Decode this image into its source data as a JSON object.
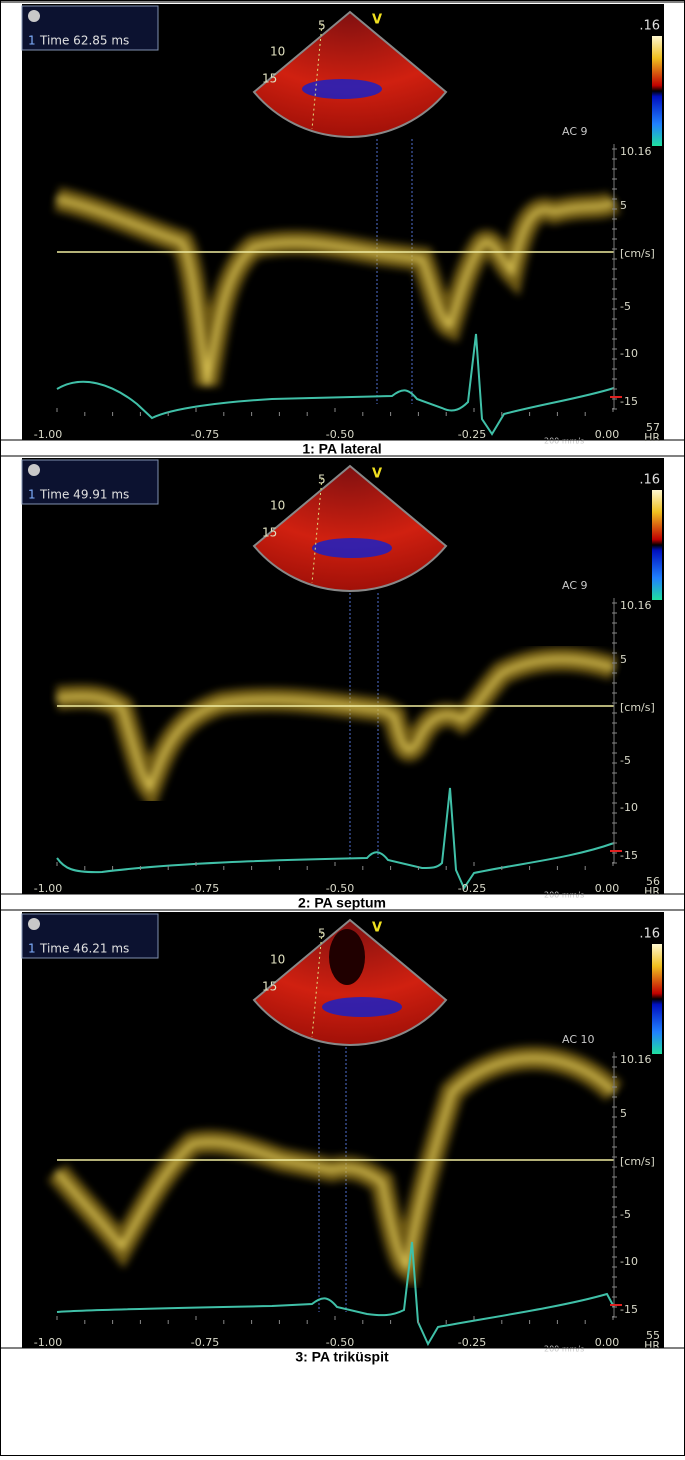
{
  "panels": [
    {
      "index": "1",
      "time": "Time 62.85 ms",
      "depth_labels": [
        "5",
        "10",
        "15"
      ],
      "mode": "V",
      "scale_max": ".16",
      "ac": "AC 9",
      "y_axis": [
        "10.16",
        "5",
        "[cm/s]",
        "-5",
        "-10",
        "-15"
      ],
      "x_axis": [
        "-1.00",
        "-0.75",
        "-0.50",
        "-0.25",
        "0.00"
      ],
      "speed": "200 mm/s",
      "hr": "57",
      "hr_label": "HR",
      "caption": "1: PA lateral"
    },
    {
      "index": "1",
      "time": "Time 49.91 ms",
      "depth_labels": [
        "5",
        "10",
        "15"
      ],
      "mode": "V",
      "scale_max": ".16",
      "ac": "AC 9",
      "y_axis": [
        "10.16",
        "5",
        "[cm/s]",
        "-5",
        "-10",
        "-15"
      ],
      "x_axis": [
        "-1.00",
        "-0.75",
        "-0.50",
        "-0.25",
        "0.00"
      ],
      "speed": "200 mm/s",
      "hr": "56",
      "hr_label": "HR",
      "caption": "2: PA septum"
    },
    {
      "index": "1",
      "time": "Time 46.21 ms",
      "depth_labels": [
        "5",
        "10",
        "15"
      ],
      "mode": "V",
      "scale_max": ".16",
      "ac": "AC 10",
      "y_axis": [
        "10.16",
        "5",
        "[cm/s]",
        "-5",
        "-10",
        "-15"
      ],
      "x_axis": [
        "-1.00",
        "-0.75",
        "-0.50",
        "-0.25",
        "0.00"
      ],
      "speed": "200 mm/s",
      "hr": "55",
      "hr_label": "HR",
      "caption": "3: PA triküspit"
    }
  ]
}
